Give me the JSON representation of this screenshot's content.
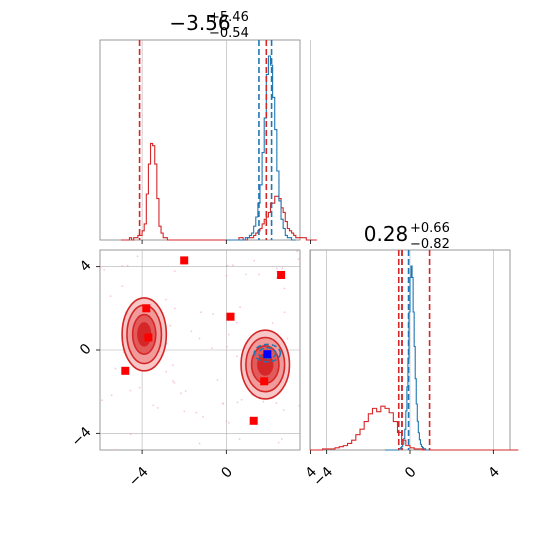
{
  "chart_data": {
    "type": "corner",
    "grid": true,
    "colors": {
      "red": "#d62728",
      "blue": "#1f77b4",
      "marker_red": "#ff0000",
      "marker_blue": "#0000ff",
      "scatter_pink": "#f4a0c8",
      "grid": "#b0b0b0",
      "axes": "#808080"
    },
    "params": [
      {
        "title_main": "−3.56",
        "title_sup": "+5.46",
        "title_sub": "−0.54",
        "range": [
          -6,
          3.5
        ]
      },
      {
        "title_main": "0.28",
        "title_sup": "+0.66",
        "title_sub": "−0.82",
        "range": [
          -4.8,
          4.8
        ]
      }
    ],
    "ticks": {
      "values": [
        -4,
        0,
        4
      ],
      "labels": [
        "−4",
        "0",
        "4"
      ]
    },
    "diag_1": {
      "bin_width": 0.1,
      "x_start": -5.0,
      "red_counts": [
        0,
        0,
        0,
        0,
        1,
        0,
        1,
        1,
        2,
        2,
        4,
        7,
        20,
        33,
        42,
        41,
        33,
        18,
        6,
        3,
        1,
        1,
        0,
        0,
        0,
        0,
        0,
        0,
        0,
        0,
        0,
        0,
        0,
        0,
        0,
        0,
        0,
        0,
        0,
        0,
        0,
        0,
        0,
        0,
        0,
        0,
        0,
        0,
        0,
        0,
        0,
        0,
        0,
        0,
        0,
        0,
        1,
        1,
        0,
        0,
        1,
        1,
        1,
        2,
        3,
        4,
        5,
        7,
        9,
        10,
        12,
        16,
        16,
        19,
        19,
        18,
        14,
        12,
        8,
        5,
        4,
        3,
        2,
        1,
        1,
        1,
        1,
        1,
        0,
        0,
        0,
        0,
        0
      ],
      "blue_x_start": 0.0,
      "blue_counts": [
        0,
        0,
        0,
        0,
        0,
        0,
        0,
        0,
        0,
        1,
        1,
        2,
        3,
        6,
        10,
        16,
        24,
        38,
        53,
        72,
        80,
        76,
        62,
        48,
        30,
        17,
        9,
        5,
        2,
        1,
        1,
        0,
        0
      ],
      "red_quantiles": [
        -4.12,
        1.9
      ],
      "blue_quantiles": [
        1.55,
        2.15
      ],
      "median": 1.9
    },
    "diag_2": {
      "bin_width": 0.2,
      "x_start": -4.8,
      "red_counts": [
        0,
        0,
        0,
        1,
        1,
        1,
        2,
        3,
        4,
        6,
        9,
        14,
        19,
        26,
        33,
        38,
        35,
        40,
        38,
        34,
        26,
        16,
        9,
        4,
        2,
        1,
        1,
        0,
        0,
        0,
        0,
        0,
        0,
        0,
        0,
        0,
        0,
        0,
        0,
        0,
        0,
        0,
        0,
        0,
        0,
        0,
        0,
        0,
        0,
        0
      ],
      "blue_x_start": -1.2,
      "blue_bin_width": 0.05,
      "blue_counts": [
        0,
        0,
        0,
        0,
        0,
        0,
        0,
        0,
        0,
        0,
        0,
        0,
        0,
        1,
        1,
        2,
        3,
        5,
        10,
        18,
        34,
        55,
        80,
        120,
        150,
        160,
        150,
        120,
        90,
        62,
        40,
        25,
        15,
        9,
        5,
        3,
        2,
        1,
        1,
        0,
        0,
        0
      ],
      "red_quantiles": [
        -0.54,
        0.94
      ],
      "blue_quantiles": [
        -0.39,
        -0.07
      ],
      "median": -0.38
    },
    "markers_red": [
      [
        -3.8,
        2.0
      ],
      [
        -3.7,
        0.6
      ],
      [
        -2.0,
        4.3
      ],
      [
        0.2,
        1.6
      ],
      [
        2.6,
        3.6
      ],
      [
        -4.8,
        -1.0
      ],
      [
        1.8,
        -1.5
      ],
      [
        1.3,
        -3.4
      ]
    ],
    "marker_blue": [
      1.95,
      -0.2
    ],
    "contour_red_1": {
      "cx": -3.9,
      "cy": 0.75,
      "rx_levels": [
        1.05,
        0.82,
        0.55,
        0.3
      ],
      "ry_levels": [
        1.75,
        1.4,
        0.95,
        0.55
      ]
    },
    "contour_red_2": {
      "cx": 1.85,
      "cy": -0.7,
      "rx_levels": [
        1.15,
        0.92,
        0.65,
        0.35
      ],
      "ry_levels": [
        1.65,
        1.3,
        0.9,
        0.5
      ]
    },
    "contour_blue": {
      "cx": 1.95,
      "cy": -0.15,
      "rx_levels": [
        0.62,
        0.4
      ],
      "ry_levels": [
        0.42,
        0.26
      ]
    }
  }
}
